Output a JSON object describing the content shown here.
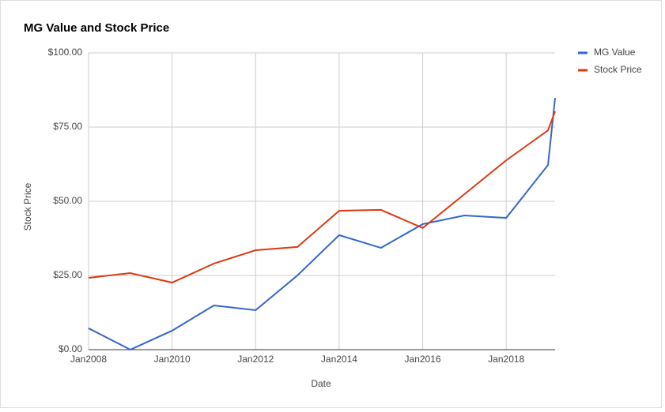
{
  "chart_data": {
    "type": "line",
    "title": "MG Value and Stock Price",
    "x_label": "Date",
    "y_label": "Stock Price",
    "x": [
      2008,
      2009,
      2010,
      2011,
      2012,
      2013,
      2014,
      2015,
      2016,
      2017,
      2018,
      2019,
      2019.17
    ],
    "series": [
      {
        "name": "MG Value",
        "color": "#3366cc",
        "values": [
          7.2,
          0,
          6.4,
          14.9,
          13.3,
          25,
          38.6,
          34.3,
          42.3,
          45.2,
          44.4,
          62.2,
          84.8
        ]
      },
      {
        "name": "Stock Price",
        "color": "#dc3912",
        "values": [
          24.2,
          25.8,
          22.6,
          29,
          33.5,
          34.6,
          46.8,
          47.1,
          41,
          52.4,
          63.8,
          73.9,
          80.3
        ]
      }
    ],
    "xlim": [
      2008,
      2019.17
    ],
    "xticks": [
      {
        "value": 2008,
        "label": "Jan2008"
      },
      {
        "value": 2010,
        "label": "Jan2010"
      },
      {
        "value": 2012,
        "label": "Jan2012"
      },
      {
        "value": 2014,
        "label": "Jan2014"
      },
      {
        "value": 2016,
        "label": "Jan2016"
      },
      {
        "value": 2018,
        "label": "Jan2018"
      }
    ],
    "ylim": [
      0,
      100
    ],
    "yticks": [
      {
        "value": 0,
        "label": "$0.00"
      },
      {
        "value": 25,
        "label": "$25.00"
      },
      {
        "value": 50,
        "label": "$50.00"
      },
      {
        "value": 75,
        "label": "$75.00"
      },
      {
        "value": 100,
        "label": "$100.00"
      }
    ],
    "grid": true,
    "legend": "right"
  }
}
